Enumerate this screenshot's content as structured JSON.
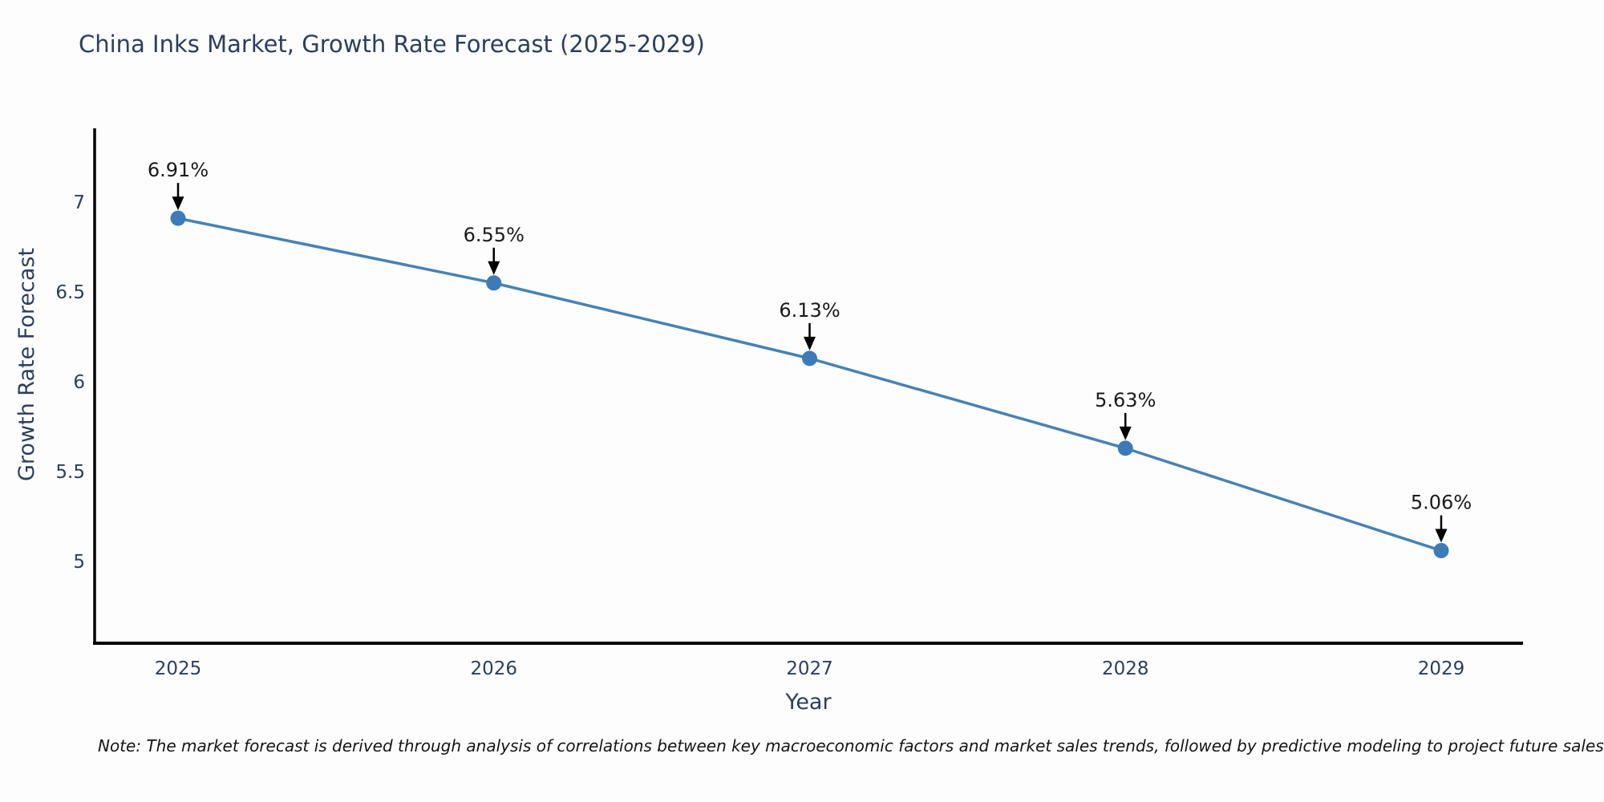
{
  "title": "China Inks Market, Growth Rate Forecast (2025-2029)",
  "note": "Note: The market forecast is derived through analysis of correlations between key macroeconomic factors and market sales trends, followed by predictive modeling to project future sales",
  "colors": {
    "line": "#4682b4",
    "marker": "#3d7ab8",
    "arrow": "#000000",
    "axis_line": "#000000",
    "tick_text": "#2a3f5f",
    "annotation_text": "#1a1a1a",
    "title_text": "#2a3f5f",
    "background": "#fdfdfe"
  },
  "chart_data": {
    "type": "line",
    "title": "China Inks Market, Growth Rate Forecast (2025-2029)",
    "xlabel": "Year",
    "ylabel": "Growth Rate Forecast",
    "categories": [
      "2025",
      "2026",
      "2027",
      "2028",
      "2029"
    ],
    "values": [
      6.91,
      6.55,
      6.13,
      5.63,
      5.06
    ],
    "point_labels": [
      "6.91%",
      "6.55%",
      "6.13%",
      "5.63%",
      "5.06%"
    ],
    "yticks": [
      {
        "label": "5",
        "value": 5
      },
      {
        "label": "5.5",
        "value": 5.5
      },
      {
        "label": "6",
        "value": 6
      },
      {
        "label": "6.5",
        "value": 6.5
      },
      {
        "label": "7",
        "value": 7
      }
    ],
    "ylim": [
      4.55,
      7.41
    ],
    "grid": false,
    "legend": false,
    "marker_style": "circle",
    "annotations": "value labels with down arrows above each point"
  }
}
